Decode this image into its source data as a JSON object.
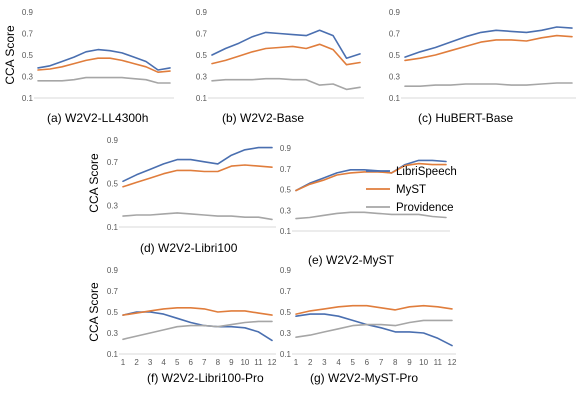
{
  "colors": {
    "LibriSpeech": "#4a6fb0",
    "MyST": "#e07d3c",
    "Providence": "#a6a6a6"
  },
  "legend": {
    "placement": "right",
    "entries": [
      "LibriSpeech",
      "MyST",
      "Providence"
    ]
  },
  "chart_data": [
    {
      "type": "line",
      "title": "(a) W2V2-LL4300h",
      "ylabel": "CCA Score",
      "x": [
        1,
        2,
        3,
        4,
        5,
        6,
        7,
        8,
        9,
        10,
        11,
        12
      ],
      "ylim": [
        0.1,
        0.9
      ],
      "yticks": [
        0.1,
        0.3,
        0.5,
        0.7,
        0.9
      ],
      "yticks_shown": [
        "0.1",
        "0.3",
        "0.5",
        "0.7",
        "0.9"
      ],
      "xticks_shown": [],
      "grid": false,
      "series": [
        {
          "name": "LibriSpeech",
          "values": [
            0.38,
            0.4,
            0.44,
            0.48,
            0.53,
            0.55,
            0.54,
            0.52,
            0.48,
            0.44,
            0.36,
            0.38
          ]
        },
        {
          "name": "MyST",
          "values": [
            0.36,
            0.37,
            0.39,
            0.42,
            0.45,
            0.47,
            0.47,
            0.45,
            0.42,
            0.39,
            0.34,
            0.35
          ]
        },
        {
          "name": "Providence",
          "values": [
            0.26,
            0.26,
            0.26,
            0.27,
            0.29,
            0.29,
            0.29,
            0.29,
            0.28,
            0.27,
            0.24,
            0.24
          ]
        }
      ]
    },
    {
      "type": "line",
      "title": "(b) W2V2-Base",
      "ylabel": "",
      "x": [
        1,
        2,
        3,
        4,
        5,
        6,
        7,
        8,
        9,
        10,
        11,
        12
      ],
      "ylim": [
        0.1,
        0.9
      ],
      "yticks": [
        0.1,
        0.3,
        0.5,
        0.7,
        0.9
      ],
      "yticks_shown": [
        "0.1",
        "0.3",
        "0.5",
        "0.7",
        "0.9"
      ],
      "xticks_shown": [],
      "grid": false,
      "series": [
        {
          "name": "LibriSpeech",
          "values": [
            0.5,
            0.56,
            0.61,
            0.67,
            0.71,
            0.7,
            0.69,
            0.68,
            0.73,
            0.68,
            0.47,
            0.51
          ]
        },
        {
          "name": "MyST",
          "values": [
            0.42,
            0.45,
            0.49,
            0.53,
            0.56,
            0.57,
            0.58,
            0.56,
            0.6,
            0.55,
            0.41,
            0.43
          ]
        },
        {
          "name": "Providence",
          "values": [
            0.26,
            0.27,
            0.27,
            0.27,
            0.28,
            0.28,
            0.27,
            0.27,
            0.22,
            0.23,
            0.18,
            0.2
          ]
        }
      ]
    },
    {
      "type": "line",
      "title": "(c) HuBERT-Base",
      "ylabel": "",
      "x": [
        1,
        2,
        3,
        4,
        5,
        6,
        7,
        8,
        9,
        10,
        11,
        12
      ],
      "ylim": [
        0.1,
        0.9
      ],
      "yticks": [
        0.1,
        0.3,
        0.5,
        0.7,
        0.9
      ],
      "yticks_shown": [
        "0.1",
        "0.3",
        "0.5",
        "0.7",
        "0.9"
      ],
      "xticks_shown": [],
      "grid": false,
      "series": [
        {
          "name": "LibriSpeech",
          "values": [
            0.48,
            0.53,
            0.57,
            0.62,
            0.67,
            0.71,
            0.73,
            0.72,
            0.71,
            0.73,
            0.76,
            0.75
          ]
        },
        {
          "name": "MyST",
          "values": [
            0.45,
            0.47,
            0.5,
            0.54,
            0.58,
            0.62,
            0.64,
            0.64,
            0.63,
            0.66,
            0.68,
            0.67
          ]
        },
        {
          "name": "Providence",
          "values": [
            0.21,
            0.21,
            0.22,
            0.22,
            0.23,
            0.23,
            0.23,
            0.22,
            0.22,
            0.23,
            0.24,
            0.24
          ]
        }
      ]
    },
    {
      "type": "line",
      "title": "(d) W2V2-Libri100",
      "ylabel": "CCA Score",
      "x": [
        1,
        2,
        3,
        4,
        5,
        6,
        7,
        8,
        9,
        10,
        11,
        12
      ],
      "ylim": [
        0.1,
        0.9
      ],
      "yticks": [
        0.1,
        0.3,
        0.5,
        0.7,
        0.9
      ],
      "yticks_shown": [
        "0.1",
        "0.3",
        "0.5",
        "0.7",
        "0.9"
      ],
      "xticks_shown": [],
      "grid": false,
      "series": [
        {
          "name": "LibriSpeech",
          "values": [
            0.52,
            0.58,
            0.63,
            0.68,
            0.72,
            0.72,
            0.7,
            0.68,
            0.76,
            0.81,
            0.83,
            0.83
          ]
        },
        {
          "name": "MyST",
          "values": [
            0.47,
            0.51,
            0.55,
            0.59,
            0.62,
            0.62,
            0.61,
            0.61,
            0.66,
            0.67,
            0.66,
            0.65
          ]
        },
        {
          "name": "Providence",
          "values": [
            0.2,
            0.21,
            0.21,
            0.22,
            0.23,
            0.22,
            0.21,
            0.2,
            0.2,
            0.19,
            0.19,
            0.17
          ]
        }
      ]
    },
    {
      "type": "line",
      "title": "(e) W2V2-MyST",
      "ylabel": "",
      "x": [
        1,
        2,
        3,
        4,
        5,
        6,
        7,
        8,
        9,
        10,
        11,
        12
      ],
      "ylim": [
        0.1,
        0.9
      ],
      "yticks": [
        0.1,
        0.3,
        0.5,
        0.7,
        0.9
      ],
      "yticks_shown": [
        "0.1",
        "0.3",
        "0.5",
        "0.7",
        "0.9"
      ],
      "xticks_shown": [],
      "grid": false,
      "series": [
        {
          "name": "LibriSpeech",
          "values": [
            0.49,
            0.56,
            0.61,
            0.66,
            0.69,
            0.69,
            0.68,
            0.66,
            0.74,
            0.78,
            0.78,
            0.77
          ]
        },
        {
          "name": "MyST",
          "values": [
            0.49,
            0.55,
            0.59,
            0.64,
            0.66,
            0.67,
            0.67,
            0.66,
            0.73,
            0.75,
            0.74,
            0.74
          ]
        },
        {
          "name": "Providence",
          "values": [
            0.22,
            0.23,
            0.25,
            0.27,
            0.28,
            0.28,
            0.27,
            0.26,
            0.26,
            0.26,
            0.24,
            0.23
          ]
        }
      ]
    },
    {
      "type": "line",
      "title": "(f) W2V2-Libri100-Pro",
      "ylabel": "CCA Score",
      "x": [
        1,
        2,
        3,
        4,
        5,
        6,
        7,
        8,
        9,
        10,
        11,
        12
      ],
      "ylim": [
        0.1,
        0.9
      ],
      "yticks": [
        0.1,
        0.3,
        0.5,
        0.7,
        0.9
      ],
      "yticks_shown": [
        "0.1",
        "0.3",
        "0.5",
        "0.7",
        "0.9"
      ],
      "xticks_shown": [
        "1",
        "2",
        "3",
        "4",
        "5",
        "6",
        "7",
        "8",
        "9",
        "10",
        "11",
        "12"
      ],
      "grid": false,
      "series": [
        {
          "name": "LibriSpeech",
          "values": [
            0.47,
            0.5,
            0.5,
            0.48,
            0.44,
            0.4,
            0.37,
            0.36,
            0.36,
            0.35,
            0.31,
            0.23
          ]
        },
        {
          "name": "MyST",
          "values": [
            0.47,
            0.49,
            0.51,
            0.53,
            0.54,
            0.54,
            0.53,
            0.5,
            0.51,
            0.51,
            0.49,
            0.47
          ]
        },
        {
          "name": "Providence",
          "values": [
            0.24,
            0.27,
            0.3,
            0.33,
            0.36,
            0.37,
            0.37,
            0.36,
            0.38,
            0.4,
            0.41,
            0.41
          ]
        }
      ]
    },
    {
      "type": "line",
      "title": "(g) W2V2-MyST-Pro",
      "ylabel": "",
      "x": [
        1,
        2,
        3,
        4,
        5,
        6,
        7,
        8,
        9,
        10,
        11,
        12
      ],
      "ylim": [
        0.1,
        0.9
      ],
      "yticks": [
        0.1,
        0.3,
        0.5,
        0.7,
        0.9
      ],
      "yticks_shown": [
        "0.1",
        "0.3",
        "0.5",
        "0.7",
        "0.9"
      ],
      "xticks_shown": [
        "1",
        "2",
        "3",
        "4",
        "5",
        "6",
        "7",
        "8",
        "9",
        "10",
        "11",
        "12"
      ],
      "grid": false,
      "series": [
        {
          "name": "LibriSpeech",
          "values": [
            0.46,
            0.48,
            0.48,
            0.46,
            0.42,
            0.38,
            0.35,
            0.31,
            0.31,
            0.3,
            0.25,
            0.18
          ]
        },
        {
          "name": "MyST",
          "values": [
            0.48,
            0.51,
            0.53,
            0.55,
            0.56,
            0.56,
            0.54,
            0.52,
            0.55,
            0.56,
            0.55,
            0.53
          ]
        },
        {
          "name": "Providence",
          "values": [
            0.26,
            0.28,
            0.31,
            0.34,
            0.37,
            0.38,
            0.38,
            0.37,
            0.4,
            0.42,
            0.42,
            0.42
          ]
        }
      ]
    }
  ]
}
